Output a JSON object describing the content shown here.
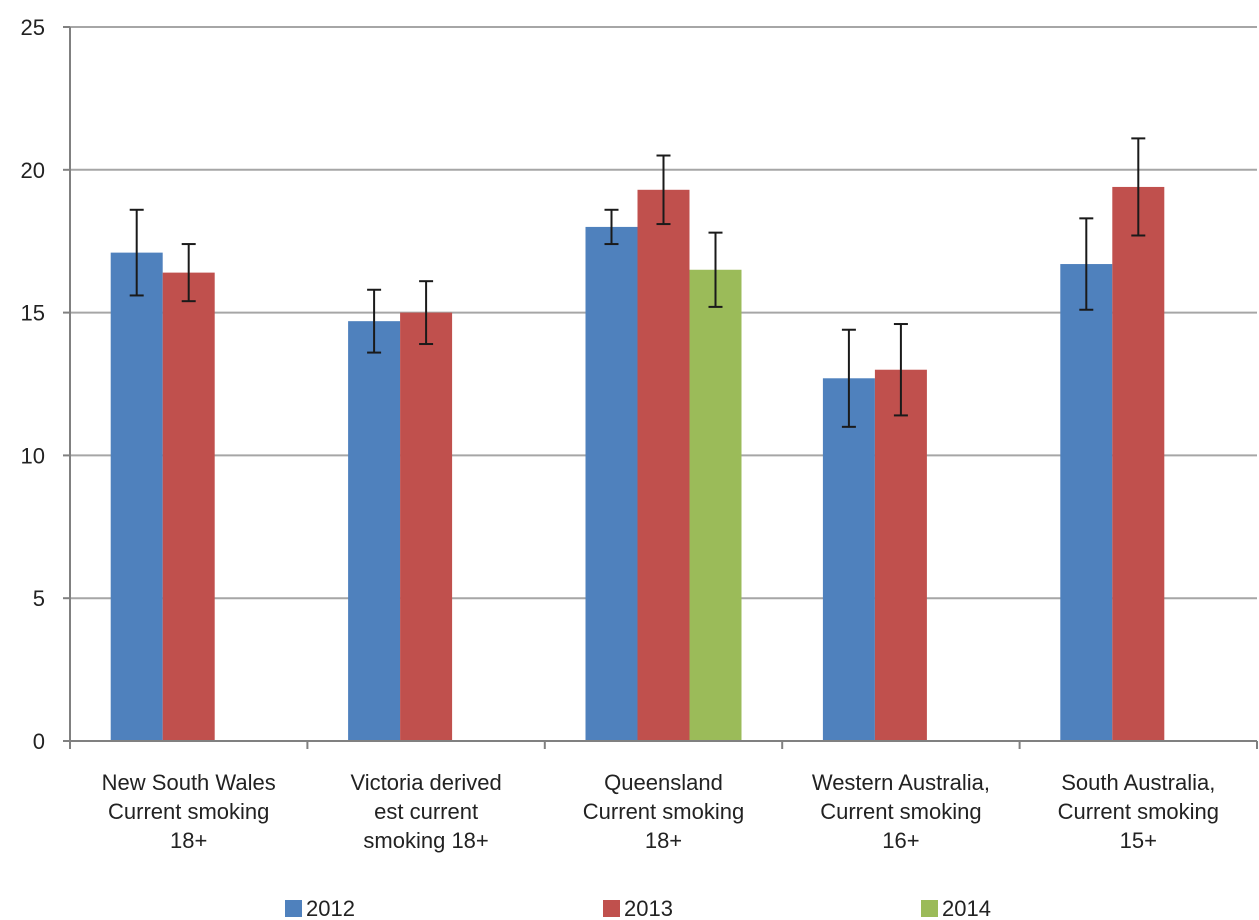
{
  "chart_data": {
    "type": "bar",
    "title": "",
    "xlabel": "",
    "ylabel": "",
    "ylim": [
      0,
      25
    ],
    "yticks": [
      "0",
      "5",
      "10",
      "15",
      "20",
      "25"
    ],
    "grid": true,
    "legend_position": "bottom",
    "categories": [
      [
        "New South Wales",
        "Current smoking",
        "18+"
      ],
      [
        "Victoria derived",
        "est current",
        "smoking 18+"
      ],
      [
        "Queensland",
        "Current smoking",
        "18+"
      ],
      [
        "Western Australia,",
        "Current smoking",
        "16+"
      ],
      [
        "South Australia,",
        "Current smoking",
        "15+"
      ]
    ],
    "series": [
      {
        "name": "2012",
        "color": "#4f81bd",
        "values": [
          17.1,
          14.7,
          18.0,
          12.7,
          16.7
        ],
        "error_low": [
          15.6,
          13.6,
          17.4,
          11.0,
          15.1
        ],
        "error_high": [
          18.6,
          15.8,
          18.6,
          14.4,
          18.3
        ]
      },
      {
        "name": "2013",
        "color": "#c0504d",
        "values": [
          16.4,
          15.0,
          19.3,
          13.0,
          19.4
        ],
        "error_low": [
          15.4,
          13.9,
          18.1,
          11.4,
          17.7
        ],
        "error_high": [
          17.4,
          16.1,
          20.5,
          14.6,
          21.1
        ]
      },
      {
        "name": "2014",
        "color": "#9bbb59",
        "values": [
          null,
          null,
          16.5,
          null,
          null
        ],
        "error_low": [
          null,
          null,
          15.2,
          null,
          null
        ],
        "error_high": [
          null,
          null,
          17.8,
          null,
          null
        ]
      }
    ]
  }
}
